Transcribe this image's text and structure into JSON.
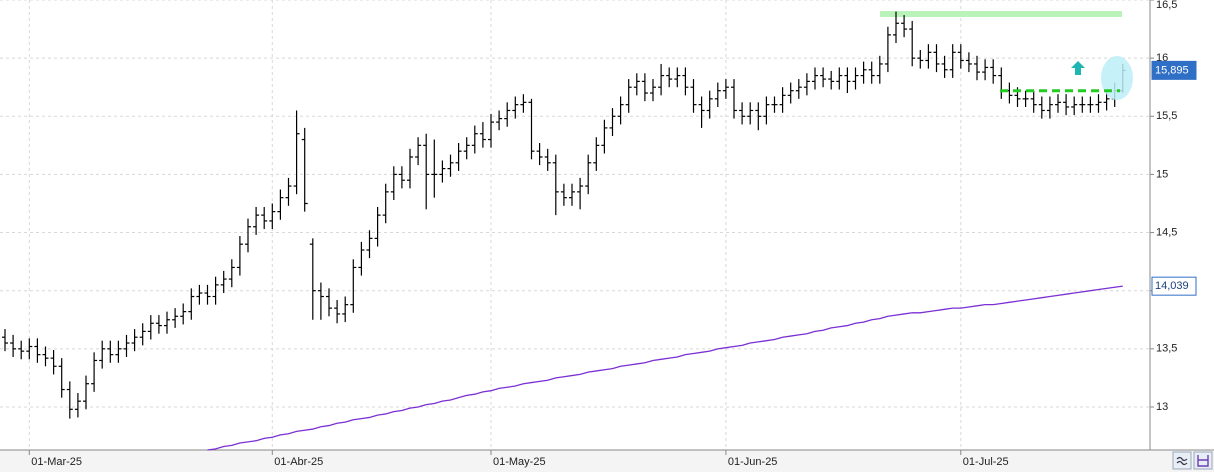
{
  "chart_data": {
    "type": "ohlc",
    "categories": [
      null,
      null,
      null,
      "01-Mar-25",
      null,
      null,
      null,
      null,
      null,
      null,
      null,
      null,
      null,
      null,
      null,
      null,
      null,
      null,
      null,
      null,
      null,
      null,
      null,
      null,
      null,
      null,
      null,
      null,
      null,
      null,
      null,
      null,
      null,
      "01-Abr-25",
      null,
      null,
      null,
      null,
      null,
      null,
      null,
      null,
      null,
      null,
      null,
      null,
      null,
      null,
      null,
      null,
      null,
      null,
      null,
      null,
      null,
      null,
      null,
      null,
      null,
      null,
      "01-May-25",
      null,
      null,
      null,
      null,
      null,
      null,
      null,
      null,
      null,
      null,
      null,
      null,
      null,
      null,
      null,
      null,
      null,
      null,
      null,
      null,
      null,
      null,
      null,
      null,
      null,
      null,
      null,
      null,
      "01-Jun-25",
      null,
      null,
      null,
      null,
      null,
      null,
      null,
      null,
      null,
      null,
      null,
      null,
      null,
      null,
      null,
      null,
      null,
      null,
      null,
      null,
      null,
      null,
      null,
      null,
      null,
      null,
      null,
      null,
      "01-Jul-25",
      null,
      null,
      null,
      null,
      null,
      null,
      null,
      null,
      null,
      null,
      null,
      null,
      null,
      null,
      null,
      null,
      null,
      null,
      null,
      null
    ],
    "ylim": [
      12.63,
      16.5
    ],
    "yticks": [
      {
        "value": 16.5,
        "label": "16,5"
      },
      16,
      {
        "value": 15.5,
        "label": "15,5"
      },
      15,
      {
        "value": 14.5,
        "label": "14,5"
      },
      14,
      {
        "value": 13.5,
        "label": "13,5"
      },
      13
    ],
    "grid": true,
    "series": [
      {
        "type": "ohlc",
        "color": "#000000",
        "last_label": "15,895",
        "open": [
          13.6,
          13.55,
          13.5,
          13.48,
          13.52,
          13.45,
          13.42,
          13.35,
          13.15,
          12.98,
          13.05,
          13.2,
          13.4,
          13.5,
          13.45,
          13.5,
          13.55,
          13.6,
          13.65,
          13.72,
          13.7,
          13.75,
          13.78,
          13.82,
          13.95,
          13.98,
          13.95,
          14.05,
          14.1,
          14.2,
          14.4,
          14.55,
          14.65,
          14.6,
          14.68,
          14.8,
          14.9,
          15.3,
          14.4,
          14.0,
          13.95,
          13.85,
          13.8,
          13.88,
          14.2,
          14.35,
          14.45,
          14.65,
          14.85,
          15.0,
          14.95,
          15.15,
          15.25,
          15.0,
          15.0,
          15.05,
          15.1,
          15.2,
          15.25,
          15.35,
          15.3,
          15.45,
          15.48,
          15.55,
          15.6,
          15.62,
          15.2,
          15.15,
          15.1,
          14.85,
          14.8,
          14.85,
          14.9,
          15.1,
          15.25,
          15.4,
          15.5,
          15.6,
          15.75,
          15.8,
          15.7,
          15.75,
          15.85,
          15.82,
          15.85,
          15.75,
          15.6,
          15.55,
          15.65,
          15.72,
          15.75,
          15.55,
          15.5,
          15.55,
          15.5,
          15.6,
          15.6,
          15.68,
          15.72,
          15.75,
          15.8,
          15.85,
          15.82,
          15.8,
          15.85,
          15.8,
          15.85,
          15.9,
          15.85,
          15.95,
          16.2,
          16.3,
          16.25,
          16.0,
          15.98,
          16.05,
          15.95,
          15.9,
          16.05,
          15.98,
          15.95,
          15.88,
          15.92,
          15.85,
          15.72,
          15.68,
          15.65,
          15.65,
          15.6,
          15.55,
          15.6,
          15.62,
          15.58,
          15.6,
          15.6,
          15.6,
          15.62,
          15.65,
          15.72
        ],
        "high": [
          13.67,
          13.62,
          13.57,
          13.59,
          13.59,
          13.52,
          13.49,
          13.42,
          13.22,
          13.12,
          13.27,
          13.47,
          13.57,
          13.57,
          13.57,
          13.62,
          13.67,
          13.72,
          13.79,
          13.79,
          13.82,
          13.85,
          13.89,
          14.02,
          14.05,
          14.05,
          14.12,
          14.17,
          14.27,
          14.47,
          14.62,
          14.72,
          14.72,
          14.75,
          14.87,
          14.97,
          15.55,
          15.4,
          14.45,
          14.07,
          14.02,
          13.92,
          13.95,
          14.27,
          14.42,
          14.52,
          14.72,
          14.92,
          15.07,
          15.07,
          15.22,
          15.32,
          15.35,
          15.3,
          15.12,
          15.17,
          15.27,
          15.32,
          15.42,
          15.45,
          15.52,
          15.55,
          15.62,
          15.67,
          15.69,
          15.65,
          15.27,
          15.22,
          15.17,
          14.92,
          14.92,
          14.97,
          15.17,
          15.32,
          15.47,
          15.57,
          15.67,
          15.82,
          15.87,
          15.87,
          15.82,
          15.95,
          15.92,
          15.92,
          15.92,
          15.82,
          15.67,
          15.72,
          15.79,
          15.82,
          15.82,
          15.62,
          15.62,
          15.62,
          15.67,
          15.67,
          15.75,
          15.79,
          15.82,
          15.87,
          15.92,
          15.92,
          15.89,
          15.92,
          15.92,
          15.92,
          15.97,
          15.97,
          16.02,
          16.27,
          16.4,
          16.37,
          16.32,
          16.07,
          16.12,
          16.12,
          16.02,
          16.12,
          16.12,
          16.05,
          16.02,
          15.99,
          15.99,
          15.92,
          15.79,
          15.75,
          15.72,
          15.72,
          15.67,
          15.67,
          15.69,
          15.69,
          15.67,
          15.67,
          15.67,
          15.69,
          15.72,
          15.79,
          15.95
        ],
        "low": [
          13.48,
          13.43,
          13.41,
          13.41,
          13.38,
          13.35,
          13.28,
          13.08,
          12.9,
          12.91,
          12.98,
          13.13,
          13.33,
          13.38,
          13.38,
          13.43,
          13.48,
          13.53,
          13.58,
          13.63,
          13.63,
          13.68,
          13.71,
          13.75,
          13.88,
          13.88,
          13.88,
          13.98,
          14.03,
          14.13,
          14.33,
          14.48,
          14.53,
          14.53,
          14.61,
          14.73,
          14.83,
          14.68,
          13.75,
          13.75,
          13.78,
          13.72,
          13.73,
          13.81,
          14.13,
          14.28,
          14.38,
          14.58,
          14.78,
          14.88,
          14.88,
          15.08,
          14.7,
          14.8,
          14.93,
          14.98,
          15.03,
          15.13,
          15.18,
          15.23,
          15.23,
          15.38,
          15.41,
          15.48,
          15.53,
          15.13,
          15.08,
          15.03,
          14.65,
          14.73,
          14.73,
          14.7,
          14.83,
          15.03,
          15.18,
          15.33,
          15.43,
          15.53,
          15.68,
          15.63,
          15.63,
          15.68,
          15.75,
          15.75,
          15.68,
          15.53,
          15.4,
          15.48,
          15.58,
          15.65,
          15.48,
          15.43,
          15.43,
          15.38,
          15.43,
          15.53,
          15.53,
          15.61,
          15.65,
          15.68,
          15.73,
          15.75,
          15.73,
          15.73,
          15.7,
          15.73,
          15.78,
          15.78,
          15.78,
          15.88,
          16.13,
          16.18,
          15.93,
          15.91,
          15.91,
          15.88,
          15.83,
          15.83,
          15.91,
          15.88,
          15.81,
          15.81,
          15.78,
          15.65,
          15.61,
          15.58,
          15.58,
          15.53,
          15.48,
          15.48,
          15.53,
          15.51,
          15.51,
          15.53,
          15.53,
          15.53,
          15.55,
          15.58,
          15.7
        ],
        "close": [
          13.55,
          13.5,
          13.48,
          13.52,
          13.45,
          13.42,
          13.35,
          13.15,
          12.98,
          13.05,
          13.2,
          13.4,
          13.5,
          13.45,
          13.5,
          13.55,
          13.6,
          13.65,
          13.72,
          13.7,
          13.75,
          13.78,
          13.82,
          13.95,
          13.98,
          13.95,
          14.05,
          14.1,
          14.2,
          14.4,
          14.55,
          14.65,
          14.6,
          14.68,
          14.8,
          14.9,
          15.35,
          14.75,
          14.0,
          13.95,
          13.85,
          13.8,
          13.88,
          14.2,
          14.35,
          14.45,
          14.65,
          14.85,
          15.0,
          14.95,
          15.15,
          15.25,
          15.0,
          15.0,
          15.05,
          15.1,
          15.2,
          15.25,
          15.35,
          15.3,
          15.45,
          15.48,
          15.55,
          15.6,
          15.62,
          15.2,
          15.15,
          15.1,
          14.85,
          14.8,
          14.85,
          14.9,
          15.1,
          15.25,
          15.4,
          15.5,
          15.6,
          15.75,
          15.8,
          15.7,
          15.75,
          15.85,
          15.82,
          15.85,
          15.75,
          15.6,
          15.55,
          15.65,
          15.72,
          15.75,
          15.55,
          15.5,
          15.55,
          15.5,
          15.6,
          15.6,
          15.68,
          15.72,
          15.75,
          15.8,
          15.85,
          15.82,
          15.8,
          15.85,
          15.8,
          15.85,
          15.9,
          15.85,
          15.95,
          16.2,
          16.3,
          16.25,
          16.0,
          15.98,
          16.05,
          15.95,
          15.9,
          16.05,
          15.98,
          15.95,
          15.88,
          15.92,
          15.85,
          15.72,
          15.68,
          15.65,
          15.65,
          15.6,
          15.55,
          15.6,
          15.62,
          15.58,
          15.6,
          15.6,
          15.6,
          15.62,
          15.65,
          15.72,
          15.895
        ]
      },
      {
        "type": "line",
        "color": "#7b2fd4",
        "last_label": "14,039",
        "values": [
          null,
          null,
          null,
          null,
          null,
          null,
          null,
          null,
          null,
          null,
          null,
          null,
          null,
          null,
          null,
          null,
          null,
          null,
          null,
          null,
          null,
          null,
          null,
          null,
          null,
          12.63,
          12.64,
          12.66,
          12.67,
          12.69,
          12.7,
          12.71,
          12.73,
          12.74,
          12.76,
          12.77,
          12.79,
          12.8,
          12.81,
          12.83,
          12.84,
          12.86,
          12.87,
          12.89,
          12.9,
          12.91,
          12.93,
          12.94,
          12.96,
          12.97,
          12.99,
          13.0,
          13.02,
          13.03,
          13.05,
          13.06,
          13.08,
          13.1,
          13.11,
          13.13,
          13.14,
          13.16,
          13.17,
          13.18,
          13.2,
          13.21,
          13.22,
          13.23,
          13.25,
          13.26,
          13.27,
          13.28,
          13.3,
          13.31,
          13.32,
          13.33,
          13.35,
          13.36,
          13.37,
          13.38,
          13.4,
          13.41,
          13.42,
          13.43,
          13.45,
          13.46,
          13.47,
          13.48,
          13.5,
          13.51,
          13.52,
          13.53,
          13.55,
          13.56,
          13.57,
          13.58,
          13.6,
          13.61,
          13.62,
          13.63,
          13.65,
          13.66,
          13.68,
          13.69,
          13.7,
          13.72,
          13.73,
          13.75,
          13.76,
          13.78,
          13.79,
          13.8,
          13.81,
          13.81,
          13.82,
          13.83,
          13.84,
          13.85,
          13.85,
          13.86,
          13.87,
          13.88,
          13.88,
          13.89,
          13.9,
          13.91,
          13.92,
          13.93,
          13.94,
          13.95,
          13.96,
          13.97,
          13.98,
          13.99,
          14.0,
          14.01,
          14.02,
          14.03,
          14.039
        ]
      }
    ],
    "levels": [
      {
        "value": 16.38,
        "color": "#b9f3b9",
        "style": "solid"
      },
      {
        "value": 15.72,
        "color": "#22cc22",
        "style": "dashed"
      }
    ]
  }
}
